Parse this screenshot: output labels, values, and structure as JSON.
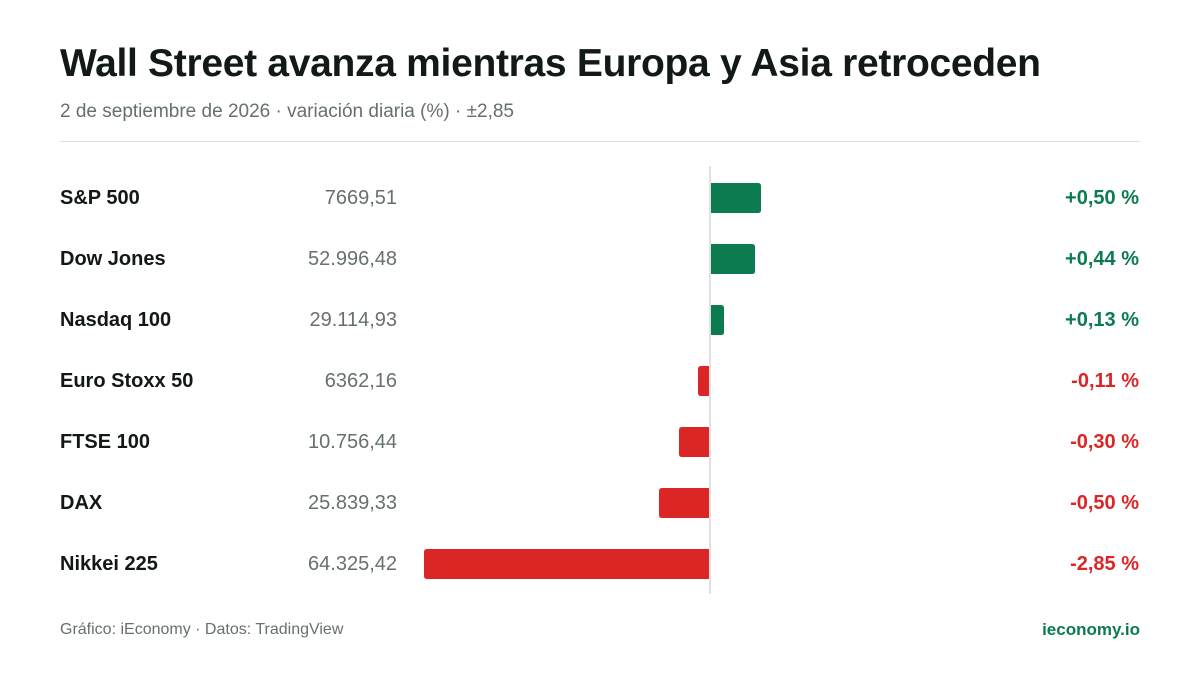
{
  "header": {
    "title": "Wall Street avanza mientras Europa y Asia retroceden",
    "subtitle": "2 de septiembre de 2026 · variación diaria (%) · ±2,85"
  },
  "footer": {
    "source": "Gráfico: iEconomy · Datos: TradingView",
    "brand": "ieconomy.io"
  },
  "colors": {
    "positive": "#0c7b4f",
    "negative": "#dc2626",
    "axis": "#d5d9d7",
    "value_text": "#66706d",
    "label_text": "#111816"
  },
  "chart_data": {
    "type": "bar",
    "orientation": "horizontal",
    "categories": [
      "S&P 500",
      "Dow Jones",
      "Nasdaq 100",
      "Euro Stoxx 50",
      "FTSE 100",
      "DAX",
      "Nikkei 225"
    ],
    "index_values": [
      "7669,51",
      "52.996,48",
      "29.114,93",
      "6362,16",
      "10.756,44",
      "25.839,33",
      "64.325,42"
    ],
    "values": [
      0.5,
      0.44,
      0.13,
      -0.11,
      -0.3,
      -0.5,
      -2.85
    ],
    "value_labels": [
      "+0,50 %",
      "+0,44 %",
      "+0,13 %",
      "-0,11 %",
      "-0,30 %",
      "-0,50 %",
      "-2,85 %"
    ],
    "xlim": [
      -2.85,
      2.85
    ],
    "grid": false,
    "legend": "none"
  }
}
